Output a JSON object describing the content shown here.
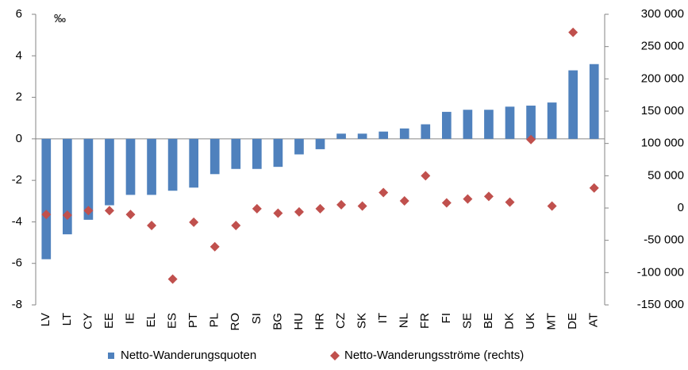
{
  "chart_data": {
    "type": "bar",
    "unit_label": "‰",
    "categories": [
      "LV",
      "LT",
      "CY",
      "EE",
      "IE",
      "EL",
      "ES",
      "PT",
      "PL",
      "RO",
      "SI",
      "BG",
      "HU",
      "HR",
      "CZ",
      "SK",
      "IT",
      "NL",
      "FR",
      "FI",
      "SE",
      "BE",
      "DK",
      "UK",
      "MT",
      "DE",
      "AT"
    ],
    "series": [
      {
        "name": "Netto-Wanderungsquoten",
        "type": "bar",
        "color": "#4f81bd",
        "axis": "y",
        "values": [
          -5.8,
          -4.6,
          -3.9,
          -3.2,
          -2.7,
          -2.7,
          -2.5,
          -2.35,
          -1.7,
          -1.45,
          -1.45,
          -1.35,
          -0.75,
          -0.5,
          0.25,
          0.25,
          0.35,
          0.5,
          0.7,
          1.3,
          1.4,
          1.4,
          1.55,
          1.6,
          1.75,
          3.3,
          3.6
        ]
      },
      {
        "name": "Netto-Wanderungsströme (rechts)",
        "type": "scatter",
        "color": "#c0504d",
        "axis": "y2",
        "values": [
          -10000,
          -11000,
          -4000,
          -4000,
          -10000,
          -27000,
          -110000,
          -22000,
          -60000,
          -27000,
          -1000,
          -8000,
          -6000,
          -1000,
          5000,
          3000,
          24000,
          11000,
          50000,
          8000,
          14000,
          18000,
          9000,
          106000,
          3000,
          272000,
          31000
        ]
      }
    ],
    "ylim": [
      -8,
      6
    ],
    "yticks": [
      -8,
      -6,
      -4,
      -2,
      0,
      2,
      4,
      6
    ],
    "y2lim": [
      -150000,
      300000
    ],
    "y2ticks": [
      {
        "value": -150000,
        "label": "-150 000"
      },
      {
        "value": -100000,
        "label": "-100 000"
      },
      {
        "value": -50000,
        "label": "-50 000"
      },
      {
        "value": 0,
        "label": "0"
      },
      {
        "value": 50000,
        "label": "50 000"
      },
      {
        "value": 100000,
        "label": "100 000"
      },
      {
        "value": 150000,
        "label": "150 000"
      },
      {
        "value": 200000,
        "label": "200 000"
      },
      {
        "value": 250000,
        "label": "250 000"
      },
      {
        "value": 300000,
        "label": "300 000"
      }
    ],
    "grid": false,
    "legend": "bottom"
  }
}
